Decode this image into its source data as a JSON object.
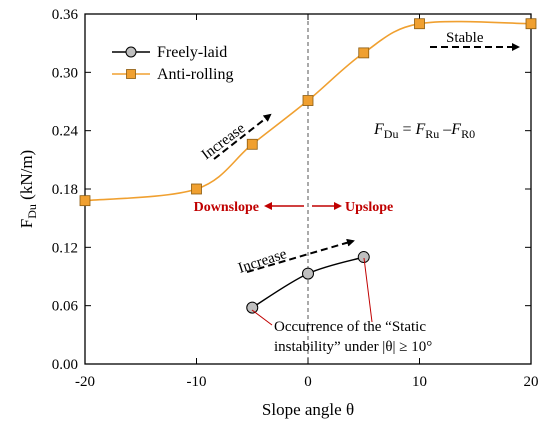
{
  "chart_data": {
    "type": "line",
    "xlabel": "Slope angle θ",
    "ylabel": "F",
    "ylabel_sub": "Du",
    "ylabel_unit": " (kN/m)",
    "xlim": [
      -20,
      20
    ],
    "ylim": [
      0,
      0.36
    ],
    "xticks": [
      -20,
      -10,
      0,
      10,
      20
    ],
    "yticks": [
      0.0,
      0.06,
      0.12,
      0.18,
      0.24,
      0.3,
      0.36
    ],
    "grid": false,
    "legend_position": "top-left",
    "series": [
      {
        "name": "Freely-laid",
        "marker": "circle",
        "color": "#000000",
        "marker_color": "#bfbfbf",
        "x": [
          -5,
          0,
          5
        ],
        "y": [
          0.058,
          0.093,
          0.11
        ]
      },
      {
        "name": "Anti-rolling",
        "marker": "square",
        "color": "#f0a030",
        "marker_color": "#f0a030",
        "x": [
          -20,
          -10,
          -5,
          0,
          5,
          10,
          20
        ],
        "y": [
          0.168,
          0.18,
          0.226,
          0.271,
          0.32,
          0.35,
          0.35
        ]
      }
    ],
    "annotations": {
      "increase_upper": "Increase",
      "increase_lower": "Increase",
      "stable": "Stable",
      "downslope": "Downslope",
      "upslope": "Upslope",
      "equation_lhs": "F",
      "equation_lhs_sub": "Du",
      "equation_r1": "F",
      "equation_r1_sub": "Ru",
      "equation_r2": "F",
      "equation_r2_sub": "R0",
      "note_line1": "Occurrence of the “Static",
      "note_line2": "instability” under |θ| ≥ 10°"
    }
  }
}
